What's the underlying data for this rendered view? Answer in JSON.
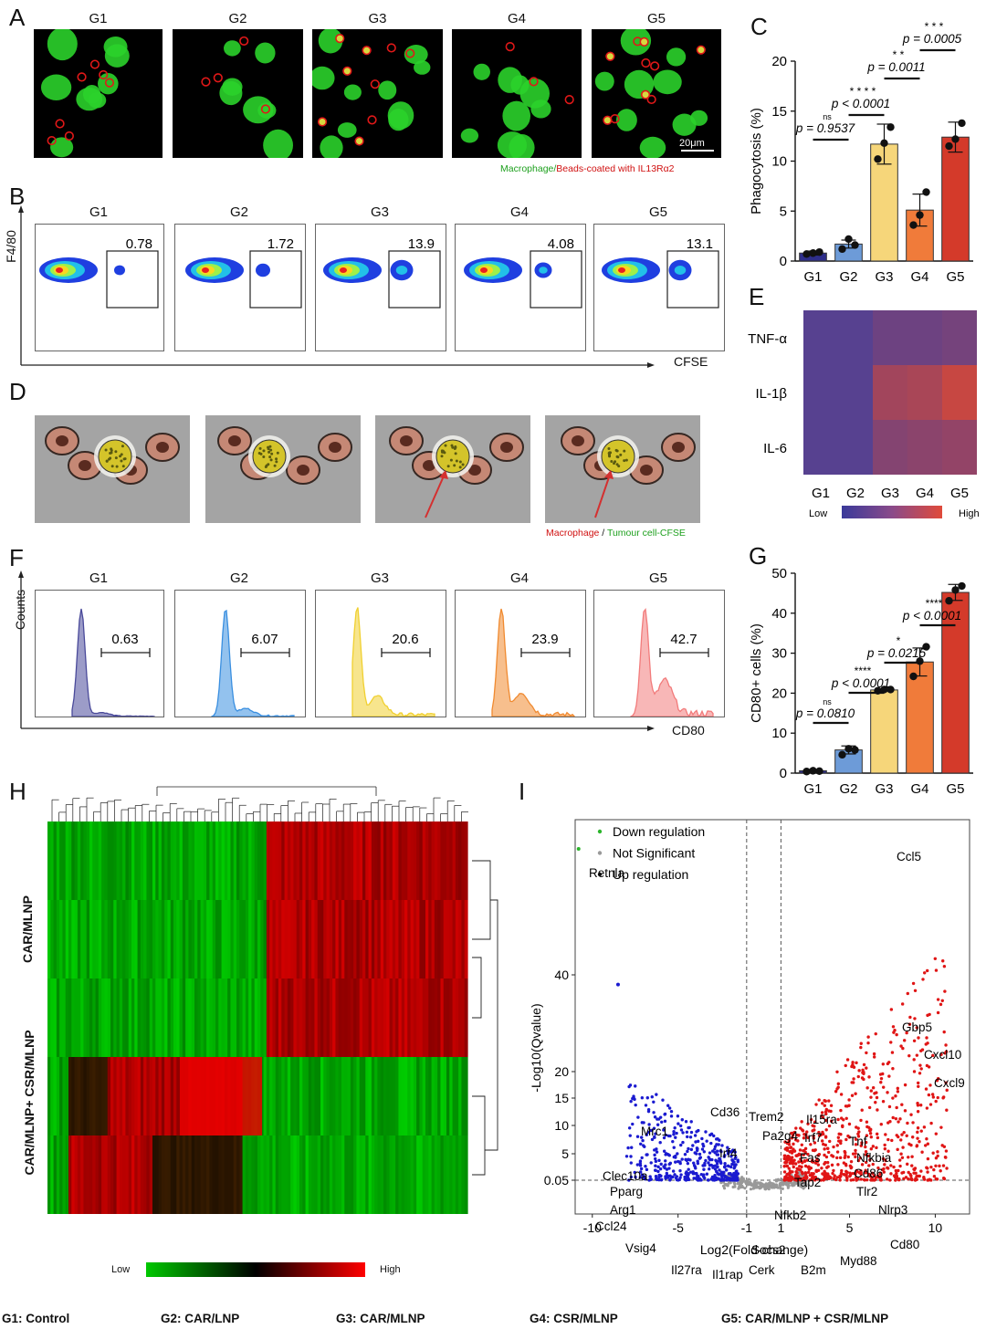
{
  "groups": [
    "G1",
    "G2",
    "G3",
    "G4",
    "G5"
  ],
  "panelA": {
    "label": "A",
    "scalebar": "20μm",
    "legend_green": "Macrophage",
    "legend_sep": "/",
    "legend_red": "Beads-coated with IL13Rα2"
  },
  "panelB": {
    "label": "B",
    "ylabel": "F4/80",
    "xlabel": "CFSE",
    "gates": [
      "0.78",
      "1.72",
      "13.9",
      "4.08",
      "13.1"
    ]
  },
  "panelC": {
    "label": "C",
    "ylabel": "Phagocytosis (%)",
    "yticks": [
      "0",
      "5",
      "10",
      "15",
      "20"
    ],
    "comparisons": [
      {
        "stars": "ns",
        "p": "p = 0.9537"
      },
      {
        "stars": "* * * *",
        "p": "p < 0.0001"
      },
      {
        "stars": "* *",
        "p": "p = 0.0011"
      },
      {
        "stars": "* * *",
        "p": "p = 0.0005"
      }
    ]
  },
  "panelD": {
    "label": "D",
    "legend_red": "Macrophage",
    "legend_sep": " / ",
    "legend_green": "Tumour cell-CFSE"
  },
  "panelE": {
    "label": "E",
    "rows": [
      "TNF-α",
      "IL-1β",
      "IL-6"
    ],
    "low": "Low",
    "high": "High"
  },
  "panelF": {
    "label": "F",
    "ylabel": "Counts",
    "xlabel": "CD80",
    "gates": [
      "0.63",
      "6.07",
      "20.6",
      "23.9",
      "42.7"
    ],
    "colors": [
      "#4a4a9a",
      "#3a8fe0",
      "#f0d030",
      "#f08a30",
      "#f27b7b"
    ]
  },
  "panelG": {
    "label": "G",
    "ylabel": "CD80+ cells (%)",
    "yticks": [
      "0",
      "10",
      "20",
      "30",
      "40",
      "50"
    ],
    "comparisons": [
      {
        "stars": "ns",
        "p": "p = 0.0810"
      },
      {
        "stars": "****",
        "p": "p < 0.0001"
      },
      {
        "stars": "*",
        "p": "p = 0.0215"
      },
      {
        "stars": "****",
        "p": "p < 0.0001"
      }
    ]
  },
  "panelH": {
    "label": "H",
    "row_labels": [
      "CAR/MLNP",
      "CAR/MLNP+ CSR/MLNP"
    ],
    "low": "Low",
    "high": "High"
  },
  "panelI": {
    "label": "I",
    "legend": [
      "Down regulation",
      "Not Significant",
      "Up regulation"
    ],
    "ylabel": "-Log10(Qvalue)",
    "xlabel": "Log2(Fold-change)",
    "xticks": [
      "-10",
      "-5",
      "-1",
      "1",
      "5",
      "10"
    ],
    "yticks": [
      "0.05",
      "5",
      "10",
      "15",
      "20",
      "40"
    ],
    "genes_left": [
      "Retnla",
      "Mrc1",
      "Cd36",
      "Trem2",
      "Pa2g4",
      "Irf4",
      "Clec10a",
      "Pparg",
      "Arg1",
      "Ccl24",
      "Vsig4",
      "Il27ra",
      "Il1rap",
      "Socs2",
      "Cerk"
    ],
    "genes_right": [
      "Ccl5",
      "Gbp5",
      "Cxcl10",
      "Cxcl9",
      "Il15ra",
      "Irf7",
      "Tnf",
      "Fas",
      "Nfkbia",
      "Cd86",
      "Tap2",
      "Tlr2",
      "Nlrp3",
      "Nfkb2",
      "B2m",
      "Myd88",
      "Cd80"
    ]
  },
  "footer": [
    "G1: Control",
    "G2: CAR/LNP",
    "G3: CAR/MLNP",
    "G4: CSR/MLNP",
    "G5: CAR/MLNP + CSR/MLNP"
  ],
  "chart_data": [
    {
      "type": "bar",
      "title": "",
      "ylabel": "Phagocytosis (%)",
      "categories": [
        "G1",
        "G2",
        "G3",
        "G4",
        "G5"
      ],
      "values": [
        0.8,
        1.7,
        11.7,
        5.1,
        12.4
      ],
      "ylim": [
        0,
        20
      ],
      "colors": [
        "#2e2e8a",
        "#6d9bd8",
        "#f6d67a",
        "#f07b3a",
        "#d43a2a"
      ]
    },
    {
      "type": "bar",
      "title": "",
      "ylabel": "CD80+ cells (%)",
      "categories": [
        "G1",
        "G2",
        "G3",
        "G4",
        "G5"
      ],
      "values": [
        0.6,
        5.8,
        20.8,
        27.8,
        45.2
      ],
      "ylim": [
        0,
        50
      ],
      "colors": [
        "#2e2e8a",
        "#6d9bd8",
        "#f6d67a",
        "#f07b3a",
        "#d43a2a"
      ]
    },
    {
      "type": "heatmap",
      "title": "",
      "rows": [
        "TNF-α",
        "IL-1β",
        "IL-6"
      ],
      "columns": [
        "G1",
        "G2",
        "G3",
        "G4",
        "G5"
      ],
      "values": [
        [
          0.15,
          0.15,
          0.3,
          0.3,
          0.35
        ],
        [
          0.15,
          0.15,
          0.65,
          0.7,
          0.9
        ],
        [
          0.15,
          0.15,
          0.45,
          0.5,
          0.55
        ]
      ]
    },
    {
      "type": "scatter",
      "title": "",
      "xlabel": "Log2(Fold-change)",
      "ylabel": "-Log10(Qvalue)",
      "xlim": [
        -11,
        12
      ]
    }
  ]
}
